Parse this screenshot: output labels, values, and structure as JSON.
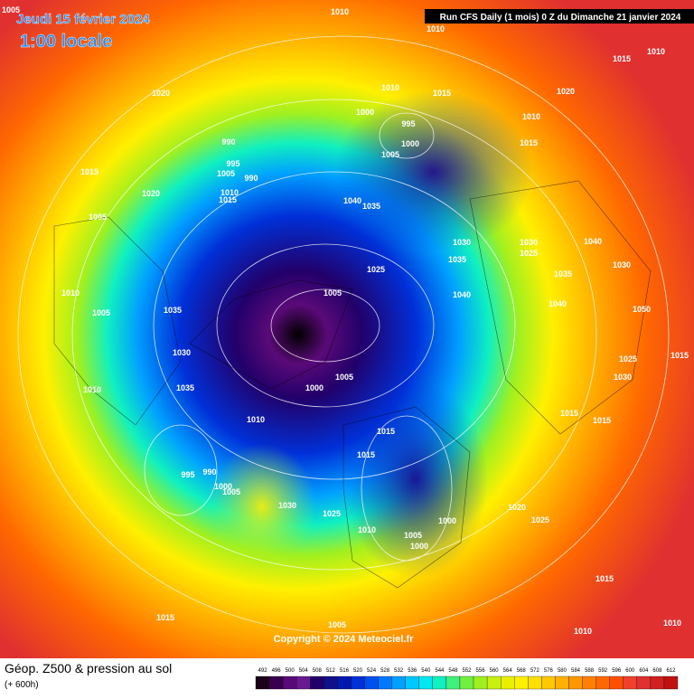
{
  "header": {
    "date": "Jeudi 15 février 2024",
    "time": "1:00 locale",
    "run": "Run CFS Daily (1 mois) 0 Z du Dimanche 21 janvier 2024"
  },
  "copyright": "Copyright © 2024 Meteociel.fr",
  "footer": {
    "title": "Géop. Z500 & pression au sol",
    "lead": "(+ 600h)"
  },
  "pressure_labels": [
    1005,
    1010,
    1010,
    1015,
    1010,
    1020,
    1010,
    1015,
    1020,
    1000,
    995,
    1010,
    1000,
    1015,
    990,
    995,
    1005,
    1005,
    990,
    1015,
    1020,
    1010,
    1015,
    1040,
    1035,
    1005,
    1030,
    1030,
    1040,
    1025,
    1035,
    1030,
    1025,
    1035,
    1010,
    1005,
    1040,
    1040,
    1035,
    1005,
    1050,
    1030,
    1025,
    1015,
    1030,
    1005,
    1000,
    1035,
    1010,
    1015,
    1015,
    1010,
    1015,
    1015,
    995,
    990,
    1000,
    1005,
    1030,
    1020,
    1025,
    1000,
    1025,
    1010,
    1005,
    1000,
    1015,
    1015,
    1005,
    1010,
    1010
  ],
  "scale": {
    "ticks": [
      492,
      496,
      500,
      504,
      508,
      512,
      516,
      520,
      524,
      528,
      532,
      536,
      540,
      544,
      548,
      552,
      556,
      560,
      564,
      568,
      572,
      576,
      580,
      584,
      588,
      592,
      596,
      600,
      604,
      608,
      612
    ],
    "colors": [
      "#1a0018",
      "#3a0050",
      "#5a0a78",
      "#6a1a90",
      "#22006a",
      "#10108a",
      "#0018b0",
      "#0030d8",
      "#0050f0",
      "#0078ff",
      "#00a0ff",
      "#00c8ff",
      "#00e8f0",
      "#10f0c0",
      "#40f080",
      "#70f040",
      "#a0f020",
      "#c8f010",
      "#e8f000",
      "#fff000",
      "#ffe000",
      "#ffc800",
      "#ffb000",
      "#ff9800",
      "#ff8000",
      "#ff6800",
      "#ff5000",
      "#f04030",
      "#e03030",
      "#d02020",
      "#c01010"
    ]
  }
}
